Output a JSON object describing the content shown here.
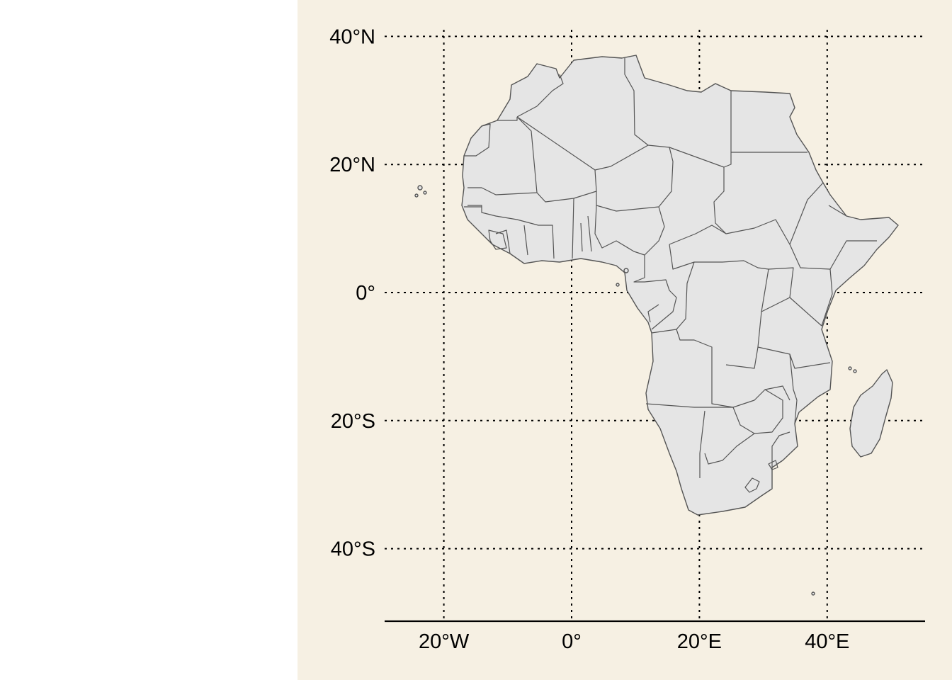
{
  "map": {
    "region": "Africa",
    "projection": "equirectangular",
    "background_color": "#f6f0e3",
    "land_fill": "#e5e5e5",
    "border_color": "#555555",
    "grid_color": "#000000",
    "grid": true,
    "lon_range": [
      -29,
      55
    ],
    "lat_range": [
      -51,
      42
    ],
    "lat_ticks": [
      {
        "value": 40,
        "label": "40°N"
      },
      {
        "value": 20,
        "label": "20°N"
      },
      {
        "value": 0,
        "label": "0°"
      },
      {
        "value": -20,
        "label": "20°S"
      },
      {
        "value": -40,
        "label": "40°S"
      }
    ],
    "lon_ticks": [
      {
        "value": -20,
        "label": "20°W"
      },
      {
        "value": 0,
        "label": "0°"
      },
      {
        "value": 20,
        "label": "20°E"
      },
      {
        "value": 40,
        "label": "40°E"
      }
    ]
  }
}
